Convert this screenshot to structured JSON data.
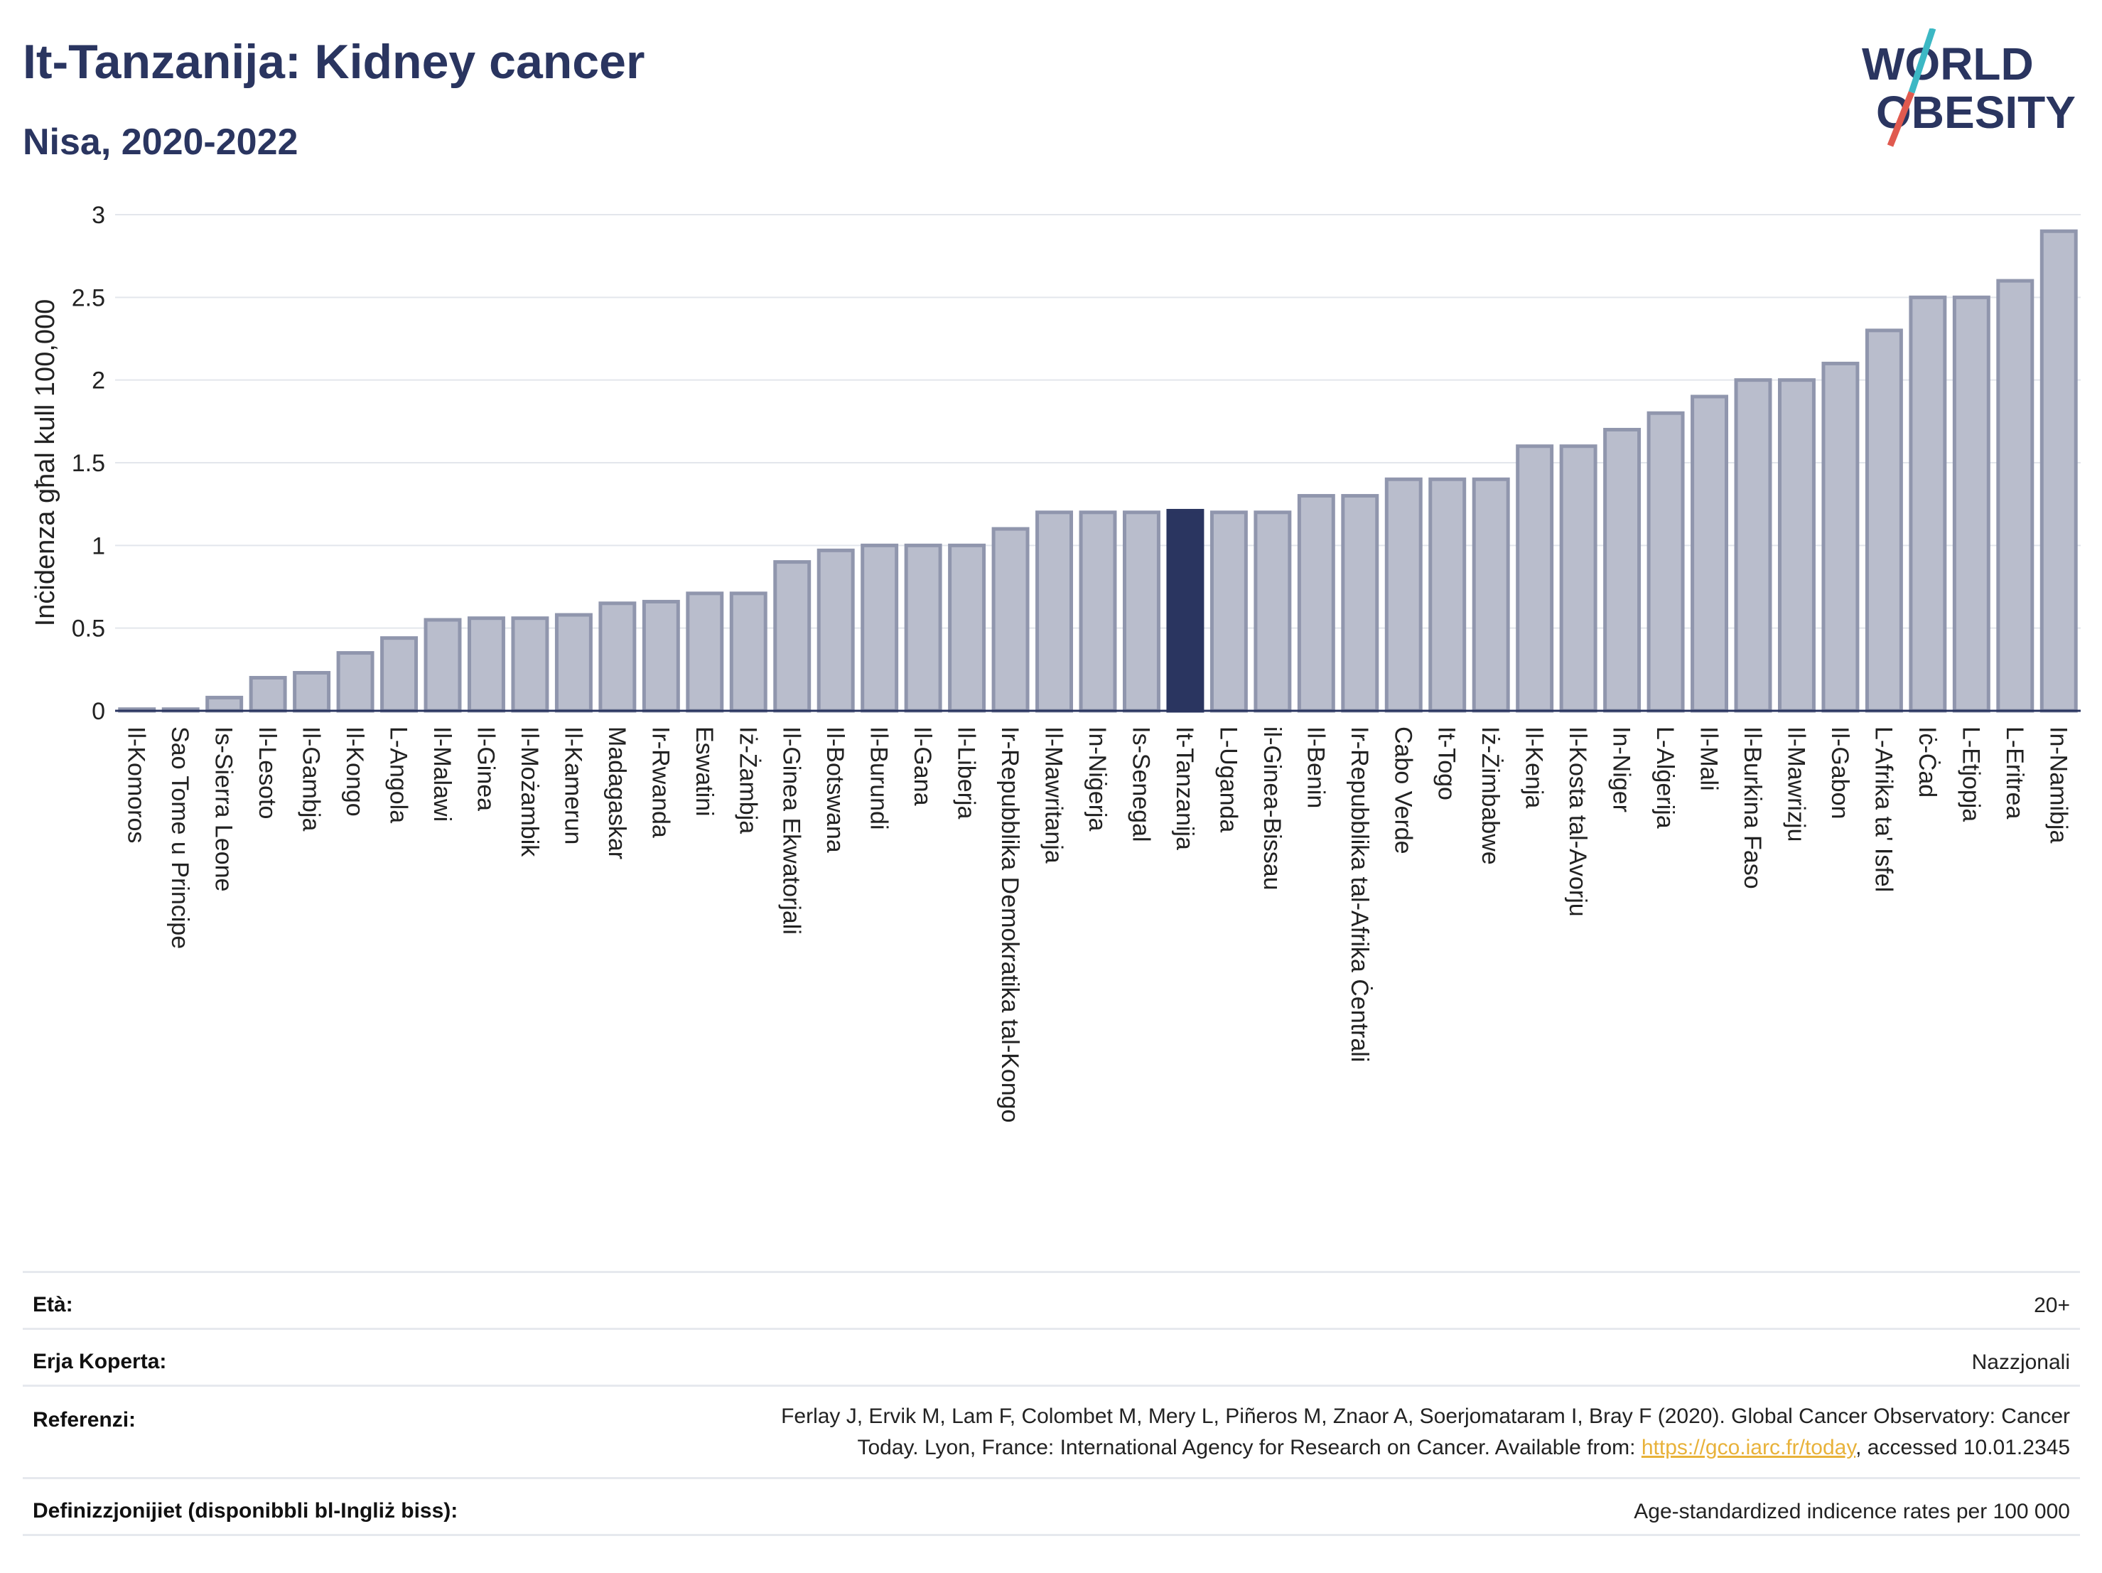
{
  "header": {
    "title": "It-Tanzanija: Kidney cancer",
    "subtitle": "Nisa, 2020-2022"
  },
  "logo": {
    "line1": "WORLD",
    "line2": "OBESITY",
    "slash_color_top": "#3cb8c4",
    "slash_color_bottom": "#e05a4f",
    "text_color": "#2a3560"
  },
  "chart_data": {
    "type": "bar",
    "ylabel": "Inċidenza għal kull 100,000",
    "ylim": [
      0,
      3
    ],
    "yticks": [
      0,
      0.5,
      1,
      1.5,
      2,
      2.5,
      3
    ],
    "grid": true,
    "highlight": "It-Tanzanija",
    "colors": {
      "bar": "#b9bdcc",
      "bar_edge": "#9096ad",
      "highlight": "#2a3560"
    },
    "categories": [
      "Il-Komoros",
      "Sao Tome u Principe",
      "Is-Sierra Leone",
      "Il-Lesoto",
      "Il-Gambja",
      "Il-Kongo",
      "L-Angola",
      "Il-Malawi",
      "Il-Ginea",
      "Il-Możambik",
      "Il-Kamerun",
      "Madagaskar",
      "Ir-Rwanda",
      "Eswatini",
      "Iż-Żambja",
      "Il-Ginea Ekwatorjali",
      "Il-Botswana",
      "Il-Burundi",
      "Il-Gana",
      "Il-Liberja",
      "Ir-Repubblika Demokratika tal-Kongo",
      "Il-Mawritanja",
      "In-Niġerja",
      "Is-Senegal",
      "It-Tanzanija",
      "L-Uganda",
      "il-Ginea-Bissau",
      "Il-Benin",
      "Ir-Repubblika tal-Afrika Ċentrali",
      "Cabo Verde",
      "It-Togo",
      "Iż-Żimbabwe",
      "Il-Kenja",
      "Il-Kosta tal-Avorju",
      "In-Niger",
      "L-Alġerija",
      "Il-Mali",
      "Il-Burkina Faso",
      "Il-Mawrizju",
      "Il-Gabon",
      "L-Afrika ta' Isfel",
      "Iċ-Ċad",
      "L-Etjopja",
      "L-Eritrea",
      "In-Namibja"
    ],
    "values": [
      0.01,
      0.01,
      0.08,
      0.2,
      0.23,
      0.35,
      0.44,
      0.55,
      0.56,
      0.56,
      0.58,
      0.65,
      0.66,
      0.71,
      0.71,
      0.9,
      0.97,
      1.0,
      1.0,
      1.0,
      1.1,
      1.2,
      1.2,
      1.2,
      1.21,
      1.2,
      1.2,
      1.3,
      1.3,
      1.4,
      1.4,
      1.4,
      1.6,
      1.6,
      1.7,
      1.8,
      1.9,
      2.0,
      2.0,
      2.1,
      2.3,
      2.5,
      2.5,
      2.6,
      2.9
    ]
  },
  "info": {
    "age_label": "Età:",
    "age_value": "20+",
    "area_label": "Erja Koperta:",
    "area_value": "Nazzjonali",
    "ref_label": "Referenzi:",
    "ref_line1": "Ferlay J, Ervik M, Lam F, Colombet M, Mery L, Piñeros M, Znaor A, Soerjomataram I, Bray F (2020). Global Cancer Observatory: Cancer",
    "ref_line2_pre": "Today. Lyon, France: International Agency for Research on Cancer. Available from: ",
    "ref_link": "https://gco.iarc.fr/today",
    "ref_line2_post": ", accessed 10.01.2345",
    "def_label": "Definizzjonijiet (disponibbli bl-Ingliż biss):",
    "def_value": "Age-standardized indicence rates per 100 000"
  }
}
